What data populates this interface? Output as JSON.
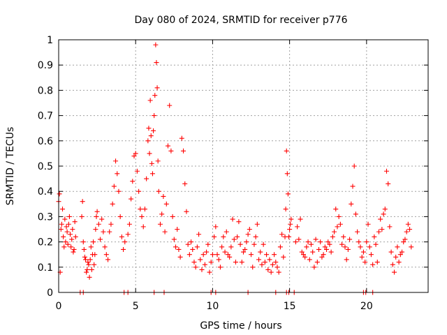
{
  "chart_data": {
    "type": "scatter",
    "title": "Day 080 of 2024, SRMTID for receiver p776",
    "xlabel": "GPS time / hours",
    "ylabel": "SRMTID / TECUs",
    "xlim": [
      0,
      24
    ],
    "ylim": [
      0,
      1
    ],
    "xticks": [
      0,
      5,
      10,
      15,
      20
    ],
    "yticks": [
      0,
      0.1,
      0.2,
      0.3,
      0.4,
      0.5,
      0.6,
      0.7,
      0.8,
      0.9,
      1
    ],
    "xtick_labels": [
      "0",
      "5",
      "10",
      "15",
      "20"
    ],
    "ytick_labels": [
      "0",
      "0.1",
      "0.2",
      "0.3",
      "0.4",
      "0.5",
      "0.6",
      "0.7",
      "0.8",
      "0.9",
      "1"
    ],
    "grid": true,
    "marker": "+",
    "color": "#ff0000",
    "series": [
      {
        "name": "SRMTID",
        "x": [
          0.0,
          0.05,
          0.1,
          0.15,
          0.2,
          0.25,
          0.3,
          0.35,
          0.4,
          0.45,
          0.5,
          0.55,
          0.6,
          0.65,
          0.7,
          0.75,
          0.8,
          0.85,
          0.9,
          0.95,
          1.0,
          1.05,
          1.1,
          1.5,
          1.55,
          1.6,
          1.65,
          1.7,
          1.75,
          1.8,
          1.85,
          1.9,
          1.95,
          2.0,
          2.05,
          2.1,
          2.15,
          2.2,
          2.25,
          2.3,
          2.35,
          2.4,
          2.45,
          2.5,
          2.6,
          2.7,
          2.8,
          2.9,
          3.0,
          3.1,
          3.2,
          3.3,
          3.4,
          3.5,
          3.6,
          3.7,
          3.8,
          3.9,
          4.0,
          4.1,
          4.2,
          4.3,
          4.5,
          4.6,
          4.7,
          4.8,
          4.9,
          5.0,
          5.1,
          5.2,
          5.3,
          5.4,
          5.5,
          5.6,
          5.7,
          5.8,
          5.85,
          5.9,
          5.95,
          6.0,
          6.05,
          6.1,
          6.15,
          6.2,
          6.25,
          6.3,
          6.35,
          6.4,
          6.45,
          6.5,
          6.6,
          6.7,
          6.8,
          6.9,
          7.0,
          7.1,
          7.2,
          7.3,
          7.4,
          7.5,
          7.6,
          7.7,
          7.8,
          7.9,
          8.0,
          8.1,
          8.2,
          8.3,
          8.4,
          8.5,
          8.6,
          8.7,
          8.8,
          8.9,
          9.0,
          9.1,
          9.2,
          9.3,
          9.4,
          9.5,
          9.6,
          9.7,
          9.8,
          9.9,
          10.0,
          10.1,
          10.2,
          10.3,
          10.4,
          10.5,
          10.6,
          10.7,
          10.8,
          10.9,
          11.0,
          11.1,
          11.2,
          11.3,
          11.4,
          11.5,
          11.6,
          11.7,
          11.8,
          11.9,
          12.0,
          12.1,
          12.2,
          12.3,
          12.4,
          12.5,
          12.6,
          12.7,
          12.8,
          12.9,
          13.0,
          13.1,
          13.2,
          13.3,
          13.4,
          13.5,
          13.6,
          13.7,
          13.8,
          13.9,
          14.0,
          14.1,
          14.2,
          14.3,
          14.4,
          14.5,
          14.6,
          14.7,
          14.75,
          14.8,
          14.85,
          14.9,
          14.95,
          15.0,
          15.05,
          15.1,
          15.4,
          15.5,
          15.6,
          15.7,
          15.8,
          15.9,
          16.0,
          16.1,
          16.2,
          16.3,
          16.4,
          16.5,
          16.6,
          16.7,
          16.8,
          16.9,
          17.0,
          17.1,
          17.2,
          17.3,
          17.4,
          17.5,
          17.6,
          17.7,
          17.8,
          17.9,
          18.0,
          18.1,
          18.2,
          18.3,
          18.4,
          18.5,
          18.6,
          18.7,
          18.8,
          18.9,
          19.0,
          19.1,
          19.2,
          19.3,
          19.4,
          19.5,
          19.6,
          19.7,
          19.8,
          19.9,
          20.0,
          20.1,
          20.2,
          20.3,
          20.4,
          20.5,
          20.6,
          20.7,
          20.8,
          20.9,
          21.0,
          21.1,
          21.2,
          21.3,
          21.4,
          21.5,
          21.6,
          21.7,
          21.8,
          21.9,
          22.0,
          22.1,
          22.2,
          22.3,
          22.4,
          22.5,
          22.6,
          22.7,
          22.8,
          22.9,
          1.4,
          1.6,
          4.25,
          4.5,
          6.2,
          6.85,
          9.9,
          10.2,
          12.3,
          14.1,
          14.8,
          14.95,
          15.3,
          19.8,
          19.95,
          20.4
        ],
        "y": [
          0.36,
          0.39,
          0.08,
          0.25,
          0.27,
          0.33,
          0.22,
          0.18,
          0.29,
          0.2,
          0.26,
          0.24,
          0.19,
          0.27,
          0.3,
          0.23,
          0.18,
          0.21,
          0.25,
          0.16,
          0.17,
          0.28,
          0.22,
          0.3,
          0.36,
          0.2,
          0.17,
          0.14,
          0.13,
          0.08,
          0.09,
          0.12,
          0.11,
          0.06,
          0.13,
          0.18,
          0.09,
          0.15,
          0.2,
          0.11,
          0.15,
          0.25,
          0.3,
          0.32,
          0.27,
          0.21,
          0.29,
          0.24,
          0.18,
          0.15,
          0.13,
          0.24,
          0.27,
          0.35,
          0.42,
          0.52,
          0.47,
          0.4,
          0.3,
          0.22,
          0.17,
          0.2,
          0.23,
          0.27,
          0.37,
          0.44,
          0.54,
          0.55,
          0.48,
          0.4,
          0.33,
          0.3,
          0.26,
          0.33,
          0.45,
          0.6,
          0.65,
          0.55,
          0.76,
          0.62,
          0.51,
          0.47,
          0.64,
          0.7,
          0.78,
          0.98,
          0.91,
          0.81,
          0.52,
          0.4,
          0.27,
          0.31,
          0.38,
          0.24,
          0.35,
          0.58,
          0.74,
          0.56,
          0.3,
          0.21,
          0.18,
          0.25,
          0.17,
          0.14,
          0.61,
          0.56,
          0.43,
          0.32,
          0.19,
          0.15,
          0.2,
          0.17,
          0.12,
          0.1,
          0.18,
          0.23,
          0.13,
          0.09,
          0.15,
          0.11,
          0.16,
          0.19,
          0.08,
          0.12,
          0.15,
          0.22,
          0.26,
          0.15,
          0.13,
          0.1,
          0.18,
          0.22,
          0.16,
          0.24,
          0.15,
          0.14,
          0.18,
          0.29,
          0.21,
          0.12,
          0.22,
          0.28,
          0.19,
          0.12,
          0.16,
          0.17,
          0.2,
          0.23,
          0.25,
          0.15,
          0.1,
          0.19,
          0.22,
          0.27,
          0.13,
          0.16,
          0.11,
          0.19,
          0.12,
          0.15,
          0.09,
          0.13,
          0.08,
          0.11,
          0.15,
          0.12,
          0.1,
          0.08,
          0.18,
          0.23,
          0.14,
          0.22,
          0.33,
          0.56,
          0.47,
          0.39,
          0.22,
          0.25,
          0.27,
          0.29,
          0.2,
          0.26,
          0.21,
          0.29,
          0.16,
          0.15,
          0.14,
          0.18,
          0.2,
          0.13,
          0.19,
          0.16,
          0.1,
          0.21,
          0.12,
          0.17,
          0.2,
          0.14,
          0.15,
          0.18,
          0.17,
          0.2,
          0.19,
          0.16,
          0.22,
          0.24,
          0.33,
          0.26,
          0.3,
          0.27,
          0.19,
          0.22,
          0.18,
          0.13,
          0.17,
          0.21,
          0.35,
          0.42,
          0.5,
          0.31,
          0.24,
          0.2,
          0.18,
          0.14,
          0.16,
          0.12,
          0.2,
          0.27,
          0.18,
          0.15,
          0.11,
          0.22,
          0.19,
          0.12,
          0.24,
          0.29,
          0.25,
          0.31,
          0.33,
          0.48,
          0.43,
          0.26,
          0.16,
          0.11,
          0.08,
          0.14,
          0.18,
          0.12,
          0.15,
          0.16,
          0.2,
          0.21,
          0.24,
          0.27,
          0.25,
          0.18,
          0,
          0,
          0,
          0,
          0,
          0,
          0,
          0,
          0,
          0,
          0,
          0,
          0,
          0,
          0,
          0
        ]
      }
    ]
  }
}
